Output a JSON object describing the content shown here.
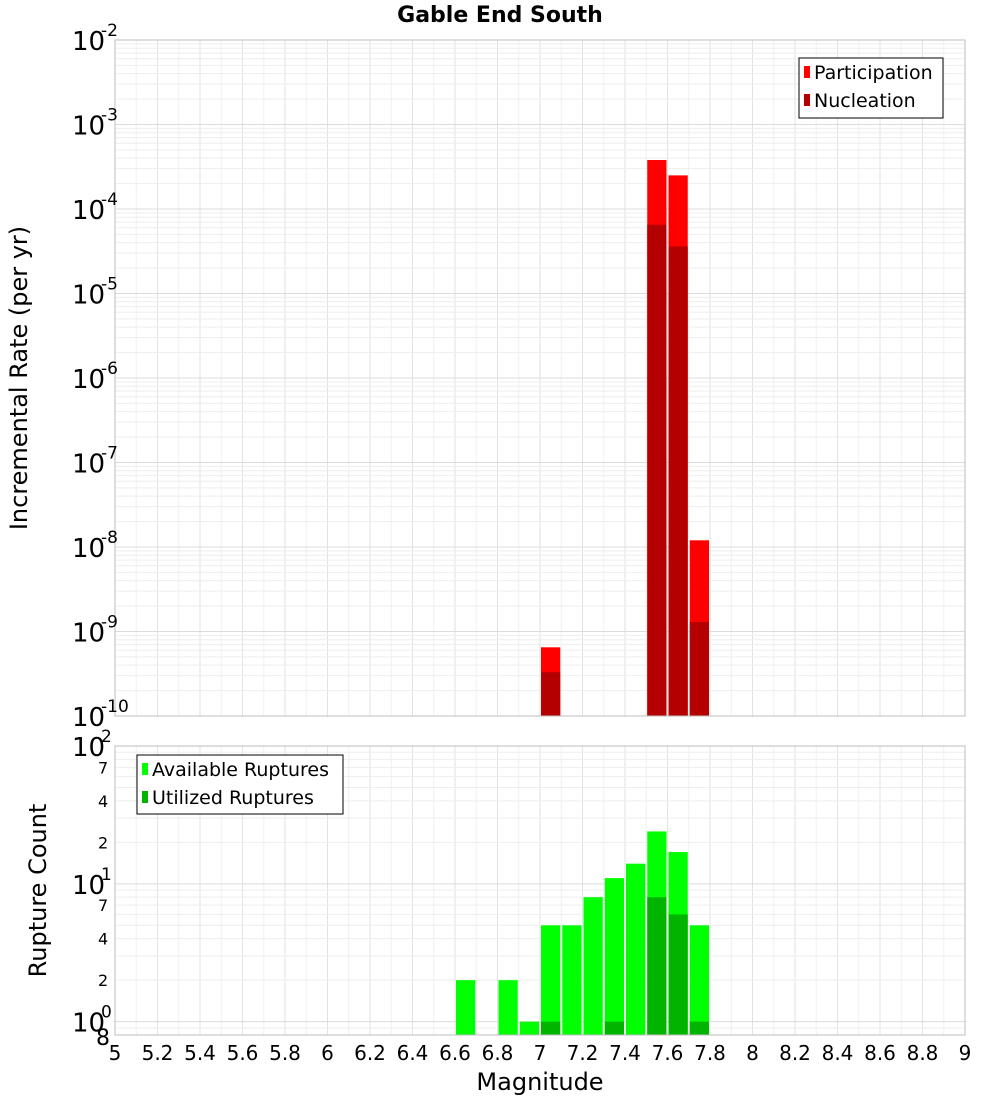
{
  "chart_data": [
    {
      "type": "bar",
      "title": "Gable End South",
      "ylabel": "Incremental Rate (per yr)",
      "xlabel": "",
      "yscale": "log",
      "ylim": [
        1e-10,
        0.01
      ],
      "xlim": [
        5,
        9
      ],
      "bar_width": 0.1,
      "grid": true,
      "legend_position": "top-right",
      "y_ticks": [
        {
          "base": "10",
          "exp": "-10",
          "value": 1e-10
        },
        {
          "base": "10",
          "exp": "-9",
          "value": 1e-09
        },
        {
          "base": "10",
          "exp": "-8",
          "value": 1e-08
        },
        {
          "base": "10",
          "exp": "-7",
          "value": 1e-07
        },
        {
          "base": "10",
          "exp": "-6",
          "value": 1e-06
        },
        {
          "base": "10",
          "exp": "-5",
          "value": 1e-05
        },
        {
          "base": "10",
          "exp": "-4",
          "value": 0.0001
        },
        {
          "base": "10",
          "exp": "-3",
          "value": 0.001
        },
        {
          "base": "10",
          "exp": "-2",
          "value": 0.01
        }
      ],
      "series": [
        {
          "name": "Participation",
          "color": "#ff0000",
          "points": [
            {
              "x": 7.05,
              "y": 6.5e-10
            },
            {
              "x": 7.55,
              "y": 0.00038
            },
            {
              "x": 7.65,
              "y": 0.00025
            },
            {
              "x": 7.75,
              "y": 1.2e-08
            }
          ]
        },
        {
          "name": "Nucleation",
          "color": "#b40000",
          "points": [
            {
              "x": 7.05,
              "y": 3.3e-10
            },
            {
              "x": 7.55,
              "y": 6.5e-05
            },
            {
              "x": 7.65,
              "y": 3.6e-05
            },
            {
              "x": 7.75,
              "y": 1.3e-09
            }
          ]
        }
      ]
    },
    {
      "type": "bar",
      "title": "",
      "ylabel": "Rupture Count",
      "xlabel": "Magnitude",
      "yscale": "log",
      "ylim": [
        0.8,
        100
      ],
      "xlim": [
        5,
        9
      ],
      "bar_width": 0.1,
      "grid": true,
      "legend_position": "top-left",
      "x_ticks": [
        "5",
        "5.2",
        "5.4",
        "5.6",
        "5.8",
        "6",
        "6.2",
        "6.4",
        "6.6",
        "6.8",
        "7",
        "7.2",
        "7.4",
        "7.6",
        "7.8",
        "8",
        "8.2",
        "8.4",
        "8.6",
        "8.8",
        "9"
      ],
      "y_major_ticks": [
        {
          "base": "10",
          "exp": "0",
          "value": 1
        },
        {
          "base": "10",
          "exp": "1",
          "value": 10
        },
        {
          "base": "10",
          "exp": "2",
          "value": 100
        }
      ],
      "y_minor_ticks": [
        {
          "label": "8",
          "value": 0.8
        },
        {
          "label": "2",
          "value": 2
        },
        {
          "label": "4",
          "value": 4
        },
        {
          "label": "7",
          "value": 7
        },
        {
          "label": "2",
          "value": 20
        },
        {
          "label": "4",
          "value": 40
        },
        {
          "label": "7",
          "value": 70
        }
      ],
      "series": [
        {
          "name": "Available Ruptures",
          "color": "#00ff00",
          "points": [
            {
              "x": 6.65,
              "y": 2
            },
            {
              "x": 6.85,
              "y": 2
            },
            {
              "x": 6.95,
              "y": 1
            },
            {
              "x": 7.05,
              "y": 5
            },
            {
              "x": 7.15,
              "y": 5
            },
            {
              "x": 7.25,
              "y": 8
            },
            {
              "x": 7.35,
              "y": 11
            },
            {
              "x": 7.45,
              "y": 14
            },
            {
              "x": 7.55,
              "y": 24
            },
            {
              "x": 7.65,
              "y": 17
            },
            {
              "x": 7.75,
              "y": 5
            }
          ]
        },
        {
          "name": "Utilized Ruptures",
          "color": "#00b400",
          "points": [
            {
              "x": 7.05,
              "y": 1
            },
            {
              "x": 7.35,
              "y": 1
            },
            {
              "x": 7.55,
              "y": 8
            },
            {
              "x": 7.65,
              "y": 6
            },
            {
              "x": 7.75,
              "y": 1
            }
          ]
        }
      ]
    }
  ]
}
